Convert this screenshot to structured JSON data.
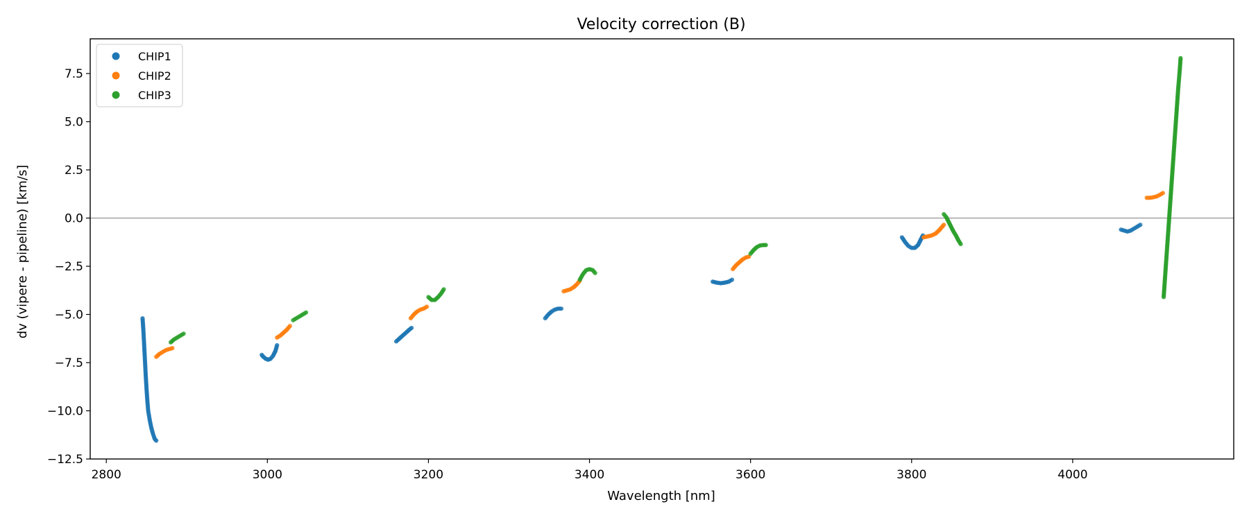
{
  "chart_data": {
    "type": "scatter",
    "title": "Velocity correction (B)",
    "xlabel": "Wavelength [nm]",
    "ylabel": "dv (vipere - pipeline) [km/s]",
    "xlim": [
      2780,
      4200
    ],
    "ylim": [
      -12.5,
      9.3
    ],
    "xticks": [
      2800,
      3000,
      3200,
      3400,
      3600,
      3800,
      4000
    ],
    "yticks": [
      -12.5,
      -10.0,
      -7.5,
      -5.0,
      -2.5,
      0.0,
      2.5,
      5.0,
      7.5
    ],
    "xtick_labels": [
      "2800",
      "3000",
      "3200",
      "3400",
      "3600",
      "3800",
      "4000"
    ],
    "ytick_labels": [
      "−12.5",
      "−10.0",
      "−7.5",
      "−5.0",
      "−2.5",
      "0.0",
      "2.5",
      "5.0",
      "7.5"
    ],
    "zero_line": 0.0,
    "legend_position": "top-left",
    "series": [
      {
        "name": "CHIP1",
        "color": "#1f77b4",
        "segments": [
          [
            [
              2845,
              -5.2
            ],
            [
              2846,
              -5.8
            ],
            [
              2847,
              -6.6
            ],
            [
              2848,
              -7.4
            ],
            [
              2849,
              -8.2
            ],
            [
              2850,
              -8.9
            ],
            [
              2851,
              -9.5
            ],
            [
              2852,
              -10.0
            ],
            [
              2854,
              -10.5
            ],
            [
              2856,
              -10.9
            ],
            [
              2858,
              -11.2
            ],
            [
              2860,
              -11.45
            ],
            [
              2862,
              -11.55
            ]
          ],
          [
            [
              2993,
              -7.1
            ],
            [
              2995,
              -7.2
            ],
            [
              2998,
              -7.3
            ],
            [
              3001,
              -7.35
            ],
            [
              3004,
              -7.3
            ],
            [
              3007,
              -7.15
            ],
            [
              3010,
              -6.9
            ],
            [
              3012,
              -6.6
            ]
          ],
          [
            [
              3160,
              -6.4
            ],
            [
              3164,
              -6.25
            ],
            [
              3168,
              -6.1
            ],
            [
              3172,
              -5.95
            ],
            [
              3176,
              -5.8
            ],
            [
              3179,
              -5.7
            ]
          ],
          [
            [
              3345,
              -5.2
            ],
            [
              3349,
              -5.0
            ],
            [
              3353,
              -4.85
            ],
            [
              3357,
              -4.75
            ],
            [
              3361,
              -4.7
            ],
            [
              3365,
              -4.7
            ]
          ],
          [
            [
              3553,
              -3.3
            ],
            [
              3558,
              -3.35
            ],
            [
              3563,
              -3.38
            ],
            [
              3568,
              -3.35
            ],
            [
              3573,
              -3.3
            ],
            [
              3577,
              -3.2
            ]
          ],
          [
            [
              3788,
              -1.0
            ],
            [
              3792,
              -1.25
            ],
            [
              3796,
              -1.45
            ],
            [
              3800,
              -1.55
            ],
            [
              3804,
              -1.55
            ],
            [
              3808,
              -1.4
            ],
            [
              3811,
              -1.15
            ],
            [
              3814,
              -0.9
            ]
          ],
          [
            [
              4060,
              -0.6
            ],
            [
              4064,
              -0.65
            ],
            [
              4068,
              -0.7
            ],
            [
              4072,
              -0.65
            ],
            [
              4076,
              -0.55
            ],
            [
              4080,
              -0.45
            ],
            [
              4084,
              -0.35
            ]
          ]
        ]
      },
      {
        "name": "CHIP2",
        "color": "#ff7f0e",
        "segments": [
          [
            [
              2862,
              -7.2
            ],
            [
              2866,
              -7.05
            ],
            [
              2870,
              -6.95
            ],
            [
              2874,
              -6.85
            ],
            [
              2878,
              -6.8
            ],
            [
              2882,
              -6.75
            ]
          ],
          [
            [
              3012,
              -6.2
            ],
            [
              3016,
              -6.1
            ],
            [
              3020,
              -5.95
            ],
            [
              3024,
              -5.8
            ],
            [
              3028,
              -5.6
            ]
          ],
          [
            [
              3178,
              -5.2
            ],
            [
              3182,
              -5.0
            ],
            [
              3186,
              -4.85
            ],
            [
              3190,
              -4.75
            ],
            [
              3194,
              -4.7
            ],
            [
              3198,
              -4.6
            ]
          ],
          [
            [
              3368,
              -3.8
            ],
            [
              3372,
              -3.75
            ],
            [
              3376,
              -3.7
            ],
            [
              3380,
              -3.6
            ],
            [
              3384,
              -3.45
            ],
            [
              3388,
              -3.25
            ]
          ],
          [
            [
              3578,
              -2.65
            ],
            [
              3582,
              -2.45
            ],
            [
              3586,
              -2.3
            ],
            [
              3590,
              -2.15
            ],
            [
              3594,
              -2.05
            ],
            [
              3598,
              -2.0
            ]
          ],
          [
            [
              3815,
              -1.0
            ],
            [
              3820,
              -0.95
            ],
            [
              3825,
              -0.9
            ],
            [
              3830,
              -0.8
            ],
            [
              3835,
              -0.6
            ],
            [
              3840,
              -0.35
            ]
          ],
          [
            [
              4092,
              1.05
            ],
            [
              4096,
              1.05
            ],
            [
              4100,
              1.08
            ],
            [
              4104,
              1.12
            ],
            [
              4108,
              1.2
            ],
            [
              4112,
              1.3
            ]
          ]
        ]
      },
      {
        "name": "CHIP3",
        "color": "#2ca02c",
        "segments": [
          [
            [
              2880,
              -6.45
            ],
            [
              2884,
              -6.3
            ],
            [
              2888,
              -6.2
            ],
            [
              2892,
              -6.1
            ],
            [
              2896,
              -6.0
            ]
          ],
          [
            [
              3032,
              -5.3
            ],
            [
              3036,
              -5.2
            ],
            [
              3040,
              -5.1
            ],
            [
              3044,
              -5.0
            ],
            [
              3048,
              -4.9
            ]
          ],
          [
            [
              3200,
              -4.1
            ],
            [
              3204,
              -4.25
            ],
            [
              3208,
              -4.25
            ],
            [
              3212,
              -4.1
            ],
            [
              3216,
              -3.9
            ],
            [
              3219,
              -3.7
            ]
          ],
          [
            [
              3388,
              -3.2
            ],
            [
              3392,
              -2.9
            ],
            [
              3396,
              -2.7
            ],
            [
              3400,
              -2.65
            ],
            [
              3404,
              -2.7
            ],
            [
              3407,
              -2.85
            ]
          ],
          [
            [
              3600,
              -1.85
            ],
            [
              3604,
              -1.65
            ],
            [
              3608,
              -1.5
            ],
            [
              3612,
              -1.42
            ],
            [
              3616,
              -1.4
            ],
            [
              3619,
              -1.4
            ]
          ],
          [
            [
              3840,
              0.2
            ],
            [
              3843,
              0.05
            ],
            [
              3846,
              -0.2
            ],
            [
              3849,
              -0.45
            ],
            [
              3852,
              -0.7
            ],
            [
              3855,
              -0.9
            ],
            [
              3858,
              -1.15
            ],
            [
              3861,
              -1.35
            ]
          ],
          [
            [
              4113,
              -4.1
            ],
            [
              4114,
              -3.5
            ],
            [
              4115,
              -2.9
            ],
            [
              4116,
              -2.3
            ],
            [
              4117,
              -1.7
            ],
            [
              4118,
              -1.1
            ],
            [
              4119,
              -0.5
            ],
            [
              4120,
              0.1
            ],
            [
              4121,
              0.7
            ],
            [
              4122,
              1.3
            ],
            [
              4123,
              1.9
            ],
            [
              4124,
              2.5
            ],
            [
              4125,
              3.1
            ],
            [
              4126,
              3.7
            ],
            [
              4127,
              4.3
            ],
            [
              4128,
              4.9
            ],
            [
              4129,
              5.5
            ],
            [
              4130,
              6.1
            ],
            [
              4131,
              6.7
            ],
            [
              4132,
              7.2
            ],
            [
              4133,
              7.7
            ],
            [
              4134,
              8.3
            ]
          ]
        ]
      }
    ]
  }
}
